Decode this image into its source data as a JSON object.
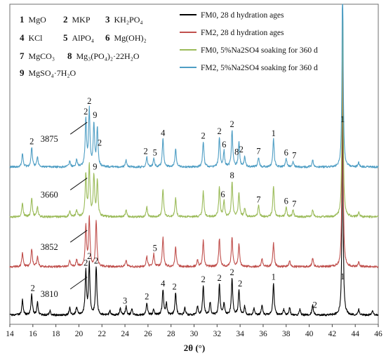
{
  "chart_data": {
    "type": "line",
    "xlabel": "2θ (°)",
    "xlim": [
      14,
      46
    ],
    "xticks": [
      14,
      16,
      18,
      20,
      22,
      24,
      26,
      28,
      30,
      32,
      34,
      36,
      38,
      40,
      42,
      44,
      46
    ],
    "y_axis_shown": false,
    "grid": false,
    "legend_position": "top-right",
    "series": [
      {
        "name": "FM0, 28 d hydration ages",
        "color": "#000000",
        "offset": 0,
        "peaks": [
          [
            15.1,
            22
          ],
          [
            15.9,
            30
          ],
          [
            16.4,
            18
          ],
          [
            17.5,
            6
          ],
          [
            19.2,
            10
          ],
          [
            19.8,
            12
          ],
          [
            20.6,
            62
          ],
          [
            20.9,
            72
          ],
          [
            21.5,
            68
          ],
          [
            22.7,
            6
          ],
          [
            23.6,
            10
          ],
          [
            24.1,
            12
          ],
          [
            24.6,
            8
          ],
          [
            25.9,
            18
          ],
          [
            26.5,
            8
          ],
          [
            27.3,
            36
          ],
          [
            27.6,
            16
          ],
          [
            28.4,
            32
          ],
          [
            29.2,
            10
          ],
          [
            30.3,
            12
          ],
          [
            30.8,
            42
          ],
          [
            31.4,
            18
          ],
          [
            32.2,
            44
          ],
          [
            32.6,
            16
          ],
          [
            33.3,
            52
          ],
          [
            33.9,
            36
          ],
          [
            34.4,
            12
          ],
          [
            35.2,
            10
          ],
          [
            35.9,
            14
          ],
          [
            36.9,
            46
          ],
          [
            37.8,
            8
          ],
          [
            38.3,
            10
          ],
          [
            39.2,
            8
          ],
          [
            40.3,
            14
          ],
          [
            42.9,
            300
          ],
          [
            44.3,
            8
          ],
          [
            45.5,
            6
          ]
        ]
      },
      {
        "name": "FM2, 28 d hydration ages",
        "color": "#c0504d",
        "offset": 1,
        "peaks": [
          [
            15.1,
            20
          ],
          [
            15.9,
            26
          ],
          [
            16.4,
            14
          ],
          [
            19.2,
            8
          ],
          [
            19.8,
            10
          ],
          [
            20.6,
            58
          ],
          [
            20.9,
            70
          ],
          [
            21.5,
            64
          ],
          [
            24.1,
            10
          ],
          [
            25.9,
            14
          ],
          [
            26.5,
            18
          ],
          [
            27.3,
            42
          ],
          [
            28.4,
            28
          ],
          [
            30.3,
            10
          ],
          [
            30.8,
            38
          ],
          [
            32.2,
            40
          ],
          [
            33.3,
            42
          ],
          [
            33.9,
            32
          ],
          [
            35.9,
            12
          ],
          [
            36.9,
            34
          ],
          [
            38.3,
            8
          ],
          [
            40.3,
            12
          ],
          [
            42.9,
            300
          ],
          [
            44.3,
            6
          ]
        ]
      },
      {
        "name": "FM0, 5%Na2SO4 soaking for 360 d",
        "color": "#9bbb59",
        "offset": 2,
        "peaks": [
          [
            15.1,
            20
          ],
          [
            15.9,
            26
          ],
          [
            16.4,
            14
          ],
          [
            19.2,
            8
          ],
          [
            19.8,
            10
          ],
          [
            20.6,
            60
          ],
          [
            20.9,
            72
          ],
          [
            21.3,
            58
          ],
          [
            21.6,
            50
          ],
          [
            24.1,
            10
          ],
          [
            25.9,
            14
          ],
          [
            27.3,
            40
          ],
          [
            28.4,
            26
          ],
          [
            30.8,
            36
          ],
          [
            32.2,
            42
          ],
          [
            32.6,
            22
          ],
          [
            33.3,
            50
          ],
          [
            33.9,
            34
          ],
          [
            34.4,
            12
          ],
          [
            35.6,
            16
          ],
          [
            36.9,
            44
          ],
          [
            38.0,
            14
          ],
          [
            38.6,
            10
          ],
          [
            40.3,
            10
          ],
          [
            42.9,
            300
          ],
          [
            44.3,
            6
          ]
        ]
      },
      {
        "name": "FM2, 5%Na2SO4 soaking for 360 d",
        "color": "#4f9ec4",
        "offset": 3,
        "peaks": [
          [
            15.1,
            20
          ],
          [
            15.9,
            28
          ],
          [
            16.4,
            14
          ],
          [
            19.2,
            8
          ],
          [
            19.8,
            10
          ],
          [
            20.6,
            66
          ],
          [
            20.9,
            80
          ],
          [
            21.3,
            60
          ],
          [
            21.6,
            54
          ],
          [
            24.1,
            10
          ],
          [
            25.9,
            14
          ],
          [
            26.5,
            12
          ],
          [
            27.3,
            40
          ],
          [
            28.4,
            26
          ],
          [
            30.8,
            36
          ],
          [
            32.2,
            42
          ],
          [
            32.6,
            22
          ],
          [
            33.3,
            52
          ],
          [
            33.9,
            36
          ],
          [
            34.4,
            14
          ],
          [
            35.6,
            14
          ],
          [
            36.9,
            40
          ],
          [
            38.0,
            12
          ],
          [
            38.6,
            8
          ],
          [
            40.3,
            10
          ],
          [
            42.9,
            300
          ],
          [
            44.3,
            6
          ]
        ]
      }
    ],
    "phase_legend": [
      {
        "num": "1",
        "name": "MgO"
      },
      {
        "num": "2",
        "name": "MKP"
      },
      {
        "num": "3",
        "name": "KH₂PO₄"
      },
      {
        "num": "4",
        "name": "KCl"
      },
      {
        "num": "5",
        "name": "AlPO₄"
      },
      {
        "num": "6",
        "name": "Mg(OH)₂"
      },
      {
        "num": "7",
        "name": "MgCO₃"
      },
      {
        "num": "8",
        "name": "Mg₃(PO₄)₂·22H₂O"
      },
      {
        "num": "9",
        "name": "MgSO₄·7H₂O"
      }
    ],
    "peak_labels": [
      {
        "series": 0,
        "x": 16.0,
        "text": "2"
      },
      {
        "series": 0,
        "x": 20.6,
        "text": "2"
      },
      {
        "series": 0,
        "x": 20.9,
        "text": "2"
      },
      {
        "series": 0,
        "x": 21.5,
        "text": "2"
      },
      {
        "series": 0,
        "x": 24.0,
        "text": "3"
      },
      {
        "series": 0,
        "x": 25.9,
        "text": "2"
      },
      {
        "series": 0,
        "x": 27.3,
        "text": "4"
      },
      {
        "series": 0,
        "x": 28.3,
        "text": "2"
      },
      {
        "series": 0,
        "x": 30.8,
        "text": "2"
      },
      {
        "series": 0,
        "x": 32.2,
        "text": "2"
      },
      {
        "series": 0,
        "x": 33.3,
        "text": "2"
      },
      {
        "series": 0,
        "x": 34.0,
        "text": "2"
      },
      {
        "series": 0,
        "x": 36.9,
        "text": "1"
      },
      {
        "series": 0,
        "x": 40.5,
        "text": "2"
      },
      {
        "series": 0,
        "x": 42.9,
        "text": "1"
      },
      {
        "series": 1,
        "x": 26.6,
        "text": "5"
      },
      {
        "series": 2,
        "x": 21.4,
        "text": "9"
      },
      {
        "series": 2,
        "x": 32.5,
        "text": "6"
      },
      {
        "series": 2,
        "x": 33.3,
        "text": "8"
      },
      {
        "series": 2,
        "x": 35.6,
        "text": "7"
      },
      {
        "series": 2,
        "x": 38.0,
        "text": "6"
      },
      {
        "series": 2,
        "x": 38.7,
        "text": "7"
      },
      {
        "series": 3,
        "x": 15.9,
        "text": "2"
      },
      {
        "series": 3,
        "x": 20.6,
        "text": "2"
      },
      {
        "series": 3,
        "x": 20.9,
        "text": "2"
      },
      {
        "series": 3,
        "x": 21.4,
        "text": "9"
      },
      {
        "series": 3,
        "x": 21.8,
        "text": "2"
      },
      {
        "series": 3,
        "x": 25.8,
        "text": "2"
      },
      {
        "series": 3,
        "x": 26.6,
        "text": "5"
      },
      {
        "series": 3,
        "x": 27.3,
        "text": "4"
      },
      {
        "series": 3,
        "x": 30.8,
        "text": "2"
      },
      {
        "series": 3,
        "x": 32.2,
        "text": "2"
      },
      {
        "series": 3,
        "x": 32.6,
        "text": "6"
      },
      {
        "series": 3,
        "x": 33.3,
        "text": "2"
      },
      {
        "series": 3,
        "x": 33.7,
        "text": "8"
      },
      {
        "series": 3,
        "x": 34.1,
        "text": "2"
      },
      {
        "series": 3,
        "x": 35.6,
        "text": "7"
      },
      {
        "series": 3,
        "x": 36.9,
        "text": "1"
      },
      {
        "series": 3,
        "x": 38.0,
        "text": "6"
      },
      {
        "series": 3,
        "x": 38.7,
        "text": "7"
      },
      {
        "series": 3,
        "x": 42.9,
        "text": "1"
      }
    ],
    "callouts": [
      {
        "series": 0,
        "x": 20.9,
        "text": "3810"
      },
      {
        "series": 1,
        "x": 20.9,
        "text": "3852"
      },
      {
        "series": 2,
        "x": 20.9,
        "text": "3660"
      },
      {
        "series": 3,
        "x": 20.9,
        "text": "3875"
      }
    ]
  }
}
